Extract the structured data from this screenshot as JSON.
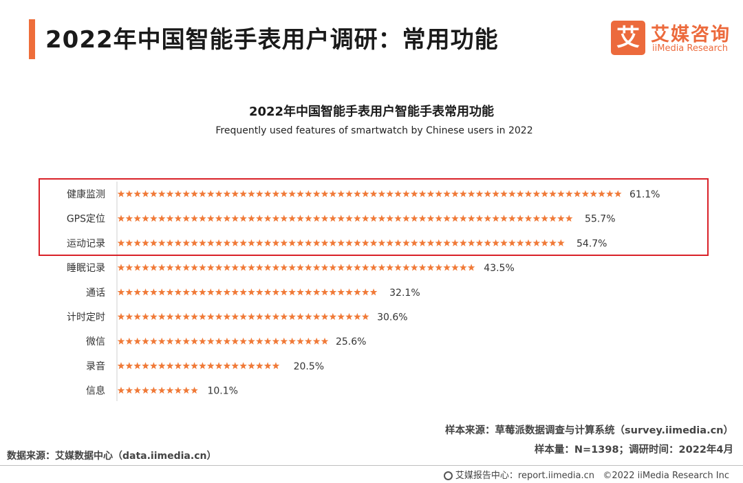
{
  "header": {
    "title": "2022年中国智能手表用户调研：常用功能",
    "logo_cn": "艾媒咨询",
    "logo_en": "iiMedia Research",
    "logo_mark": "艾"
  },
  "colors": {
    "accent": "#ee6d3a",
    "star": "#f07a38",
    "highlight": "#d92027"
  },
  "chart_data": {
    "type": "bar",
    "title": "2022年中国智能手表用户智能手表常用功能",
    "subtitle": "Frequently used features of smartwatch by Chinese users in 2022",
    "categories": [
      "健康监测",
      "GPS定位",
      "运动记录",
      "睡眠记录",
      "通话",
      "计时定时",
      "微信",
      "录音",
      "信息"
    ],
    "values": [
      61.1,
      55.7,
      54.7,
      43.5,
      32.1,
      30.6,
      25.6,
      20.5,
      10.1
    ],
    "value_labels": [
      "61.1%",
      "55.7%",
      "54.7%",
      "43.5%",
      "32.1%",
      "30.6%",
      "25.6%",
      "20.5%",
      "10.1%"
    ],
    "unit": "%",
    "marker": "star-icon",
    "orientation": "horizontal",
    "highlighted_categories": [
      "健康监测",
      "GPS定位",
      "运动记录"
    ],
    "xlim": [
      0,
      61.1
    ]
  },
  "footer": {
    "sample_source": "样本来源：草莓派数据调查与计算系统（survey.iimedia.cn）",
    "sample_size": "样本量：N=1398；调研时间：2022年4月",
    "data_source": "数据来源：艾媒数据中心（data.iimedia.cn）",
    "report_center": "艾媒报告中心：report.iimedia.cn",
    "copyright": "©2022 iiMedia Research Inc"
  }
}
